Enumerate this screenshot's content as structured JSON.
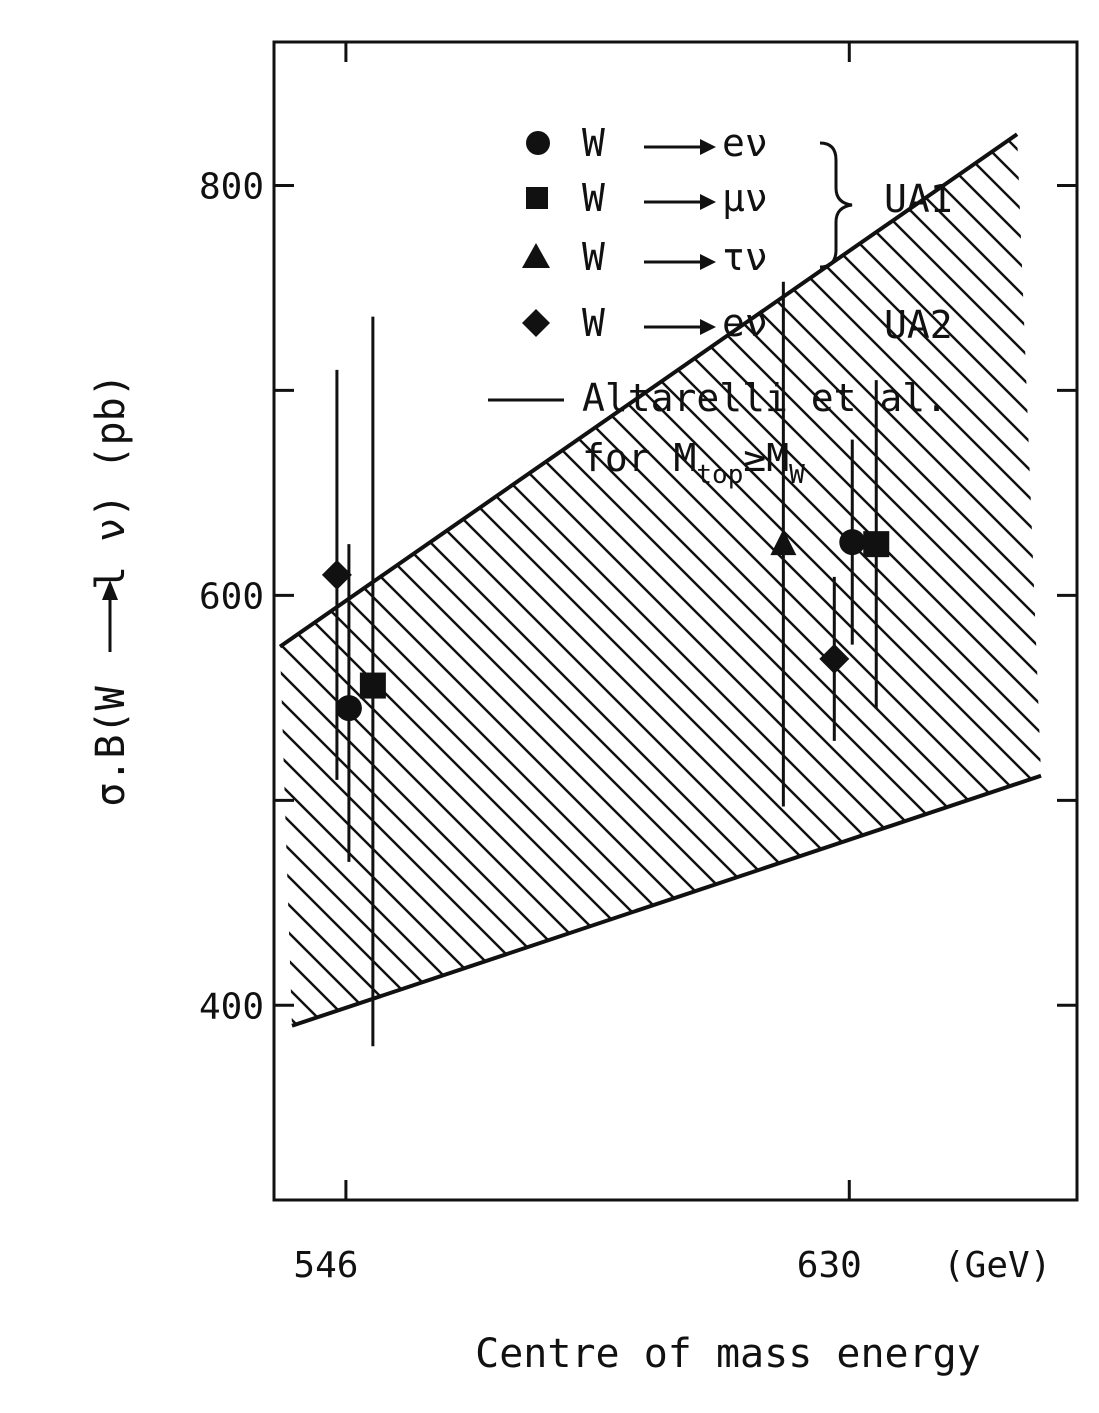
{
  "chart_data": {
    "type": "scatter",
    "xlabel": "Centre of mass energy",
    "x_unit": "(GeV)",
    "ylabel_parts": {
      "prefix": "σ.B(W ",
      "suffix": "l ν)  (pb)"
    },
    "x_ticks": [
      {
        "value": 546,
        "label": "546"
      },
      {
        "value": 630,
        "label": "630"
      }
    ],
    "y_ticks": [
      {
        "value": 400,
        "label": "400"
      },
      {
        "value": 600,
        "label": "600"
      },
      {
        "value": 800,
        "label": "800"
      }
    ],
    "y_minor_ticks": [
      500,
      700
    ],
    "x_range": [
      534,
      668
    ],
    "y_range": [
      305,
      870
    ],
    "band": {
      "name": "Altarelli et al. for M_top ≥ M_W",
      "upper": [
        {
          "x": 535,
          "y": 575
        },
        {
          "x": 658,
          "y": 825
        }
      ],
      "lower": [
        {
          "x": 537,
          "y": 390
        },
        {
          "x": 662,
          "y": 512
        }
      ]
    },
    "series": [
      {
        "name": "W → eν (UA1)",
        "marker": "circle",
        "points": [
          {
            "x": 546.5,
            "y": 545,
            "err_low": 75,
            "err_high": 80
          },
          {
            "x": 630.5,
            "y": 626,
            "err_low": 50,
            "err_high": 50
          }
        ]
      },
      {
        "name": "W → μν (UA1)",
        "marker": "square",
        "points": [
          {
            "x": 550.5,
            "y": 556,
            "err_low": 176,
            "err_high": 180
          },
          {
            "x": 634.5,
            "y": 625,
            "err_low": 80,
            "err_high": 80
          }
        ]
      },
      {
        "name": "W → τν (UA1)",
        "marker": "triangle",
        "points": [
          {
            "x": 619,
            "y": 625,
            "err_low": 128,
            "err_high": 128
          }
        ]
      },
      {
        "name": "W → eν (UA2)",
        "marker": "diamond",
        "points": [
          {
            "x": 544.5,
            "y": 610,
            "err_low": 100,
            "err_high": 100
          },
          {
            "x": 627.5,
            "y": 569,
            "err_low": 40,
            "err_high": 40
          }
        ]
      }
    ],
    "legend": {
      "position": "top-right",
      "entries": [
        {
          "marker": "circle",
          "text": "W",
          "decay": "eν"
        },
        {
          "marker": "square",
          "text": "W",
          "decay": "μν"
        },
        {
          "marker": "triangle",
          "text": "W",
          "decay": "τν"
        },
        {
          "marker": "diamond",
          "text": "W",
          "decay": "eν"
        }
      ],
      "group_ua1": "UA1",
      "group_ua2": "UA2",
      "theory_line1": "Altarelli et al.",
      "theory_line2_prefix": "for M",
      "theory_sub_top": "top",
      "theory_ge": "≥M",
      "theory_sub_w": "W"
    }
  }
}
